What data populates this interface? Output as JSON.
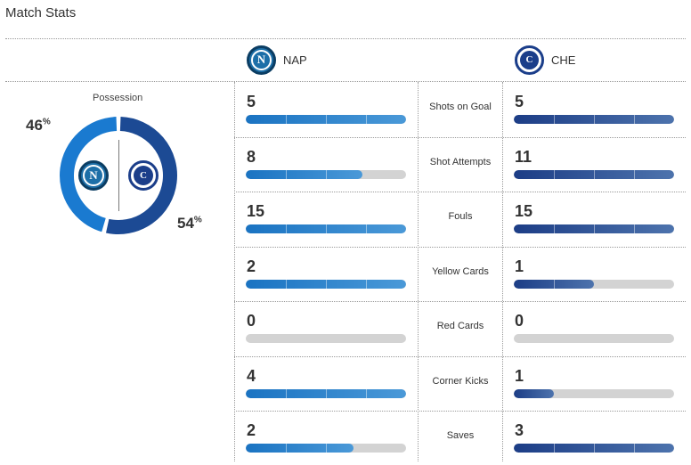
{
  "title": "Match Stats",
  "teams": {
    "home": {
      "abbr": "NAP",
      "logo_icon": "napoli-logo-icon",
      "logo_letter": "N",
      "color": "#1a73c2"
    },
    "away": {
      "abbr": "CHE",
      "logo_icon": "chelsea-logo-icon",
      "logo_letter": "C",
      "color": "#1c3d86"
    }
  },
  "possession": {
    "label": "Possession",
    "home_pct": "46",
    "away_pct": "54",
    "pct_symbol": "%"
  },
  "stats": [
    {
      "label": "Shots on Goal",
      "home": "5",
      "away": "5",
      "home_fill": 1.0,
      "away_fill": 1.0
    },
    {
      "label": "Shot Attempts",
      "home": "8",
      "away": "11",
      "home_fill": 0.73,
      "away_fill": 1.0
    },
    {
      "label": "Fouls",
      "home": "15",
      "away": "15",
      "home_fill": 1.0,
      "away_fill": 1.0
    },
    {
      "label": "Yellow Cards",
      "home": "2",
      "away": "1",
      "home_fill": 1.0,
      "away_fill": 0.5
    },
    {
      "label": "Red Cards",
      "home": "0",
      "away": "0",
      "home_fill": 0,
      "away_fill": 0
    },
    {
      "label": "Corner Kicks",
      "home": "4",
      "away": "1",
      "home_fill": 1.0,
      "away_fill": 0.25
    },
    {
      "label": "Saves",
      "home": "2",
      "away": "3",
      "home_fill": 0.67,
      "away_fill": 1.0
    }
  ]
}
